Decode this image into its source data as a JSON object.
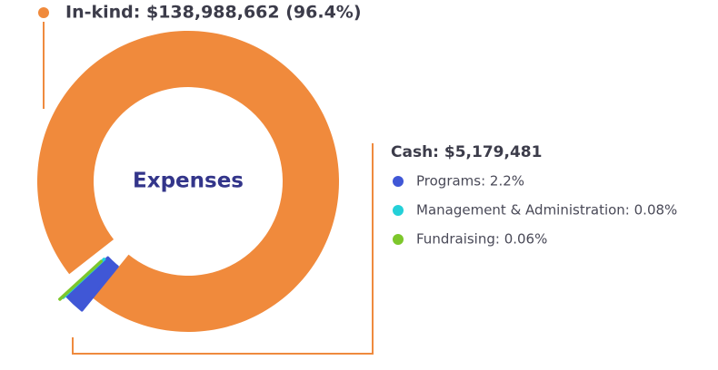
{
  "chart_data": {
    "type": "pie",
    "center_label": "Expenses",
    "categories": [
      "In-kind",
      "Programs",
      "Management & Administration",
      "Fundraising"
    ],
    "values": [
      96.4,
      2.2,
      0.08,
      0.06
    ],
    "labels": [
      "In-kind: $138,988,662 (96.4%)",
      "Programs: 2.2%",
      "Management & Administration: 0.08%",
      "Fundraising: 0.06%"
    ],
    "colors": [
      "#f08a3c",
      "#4057d6",
      "#24d0d8",
      "#7dc72b"
    ],
    "group_label": "Cash: $5,179,481"
  }
}
